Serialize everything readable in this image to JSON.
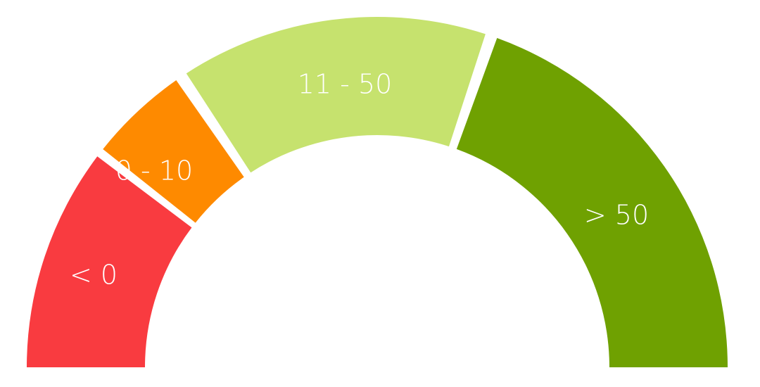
{
  "chart_data": {
    "type": "gauge",
    "title": "",
    "segments": [
      {
        "label": "< 0",
        "color": "#f93b40"
      },
      {
        "label": "0 - 10",
        "color": "#fe8a00"
      },
      {
        "label": "11 - 50",
        "color": "#c6e26e"
      },
      {
        "label": "> 50",
        "color": "#6fa101"
      }
    ]
  }
}
